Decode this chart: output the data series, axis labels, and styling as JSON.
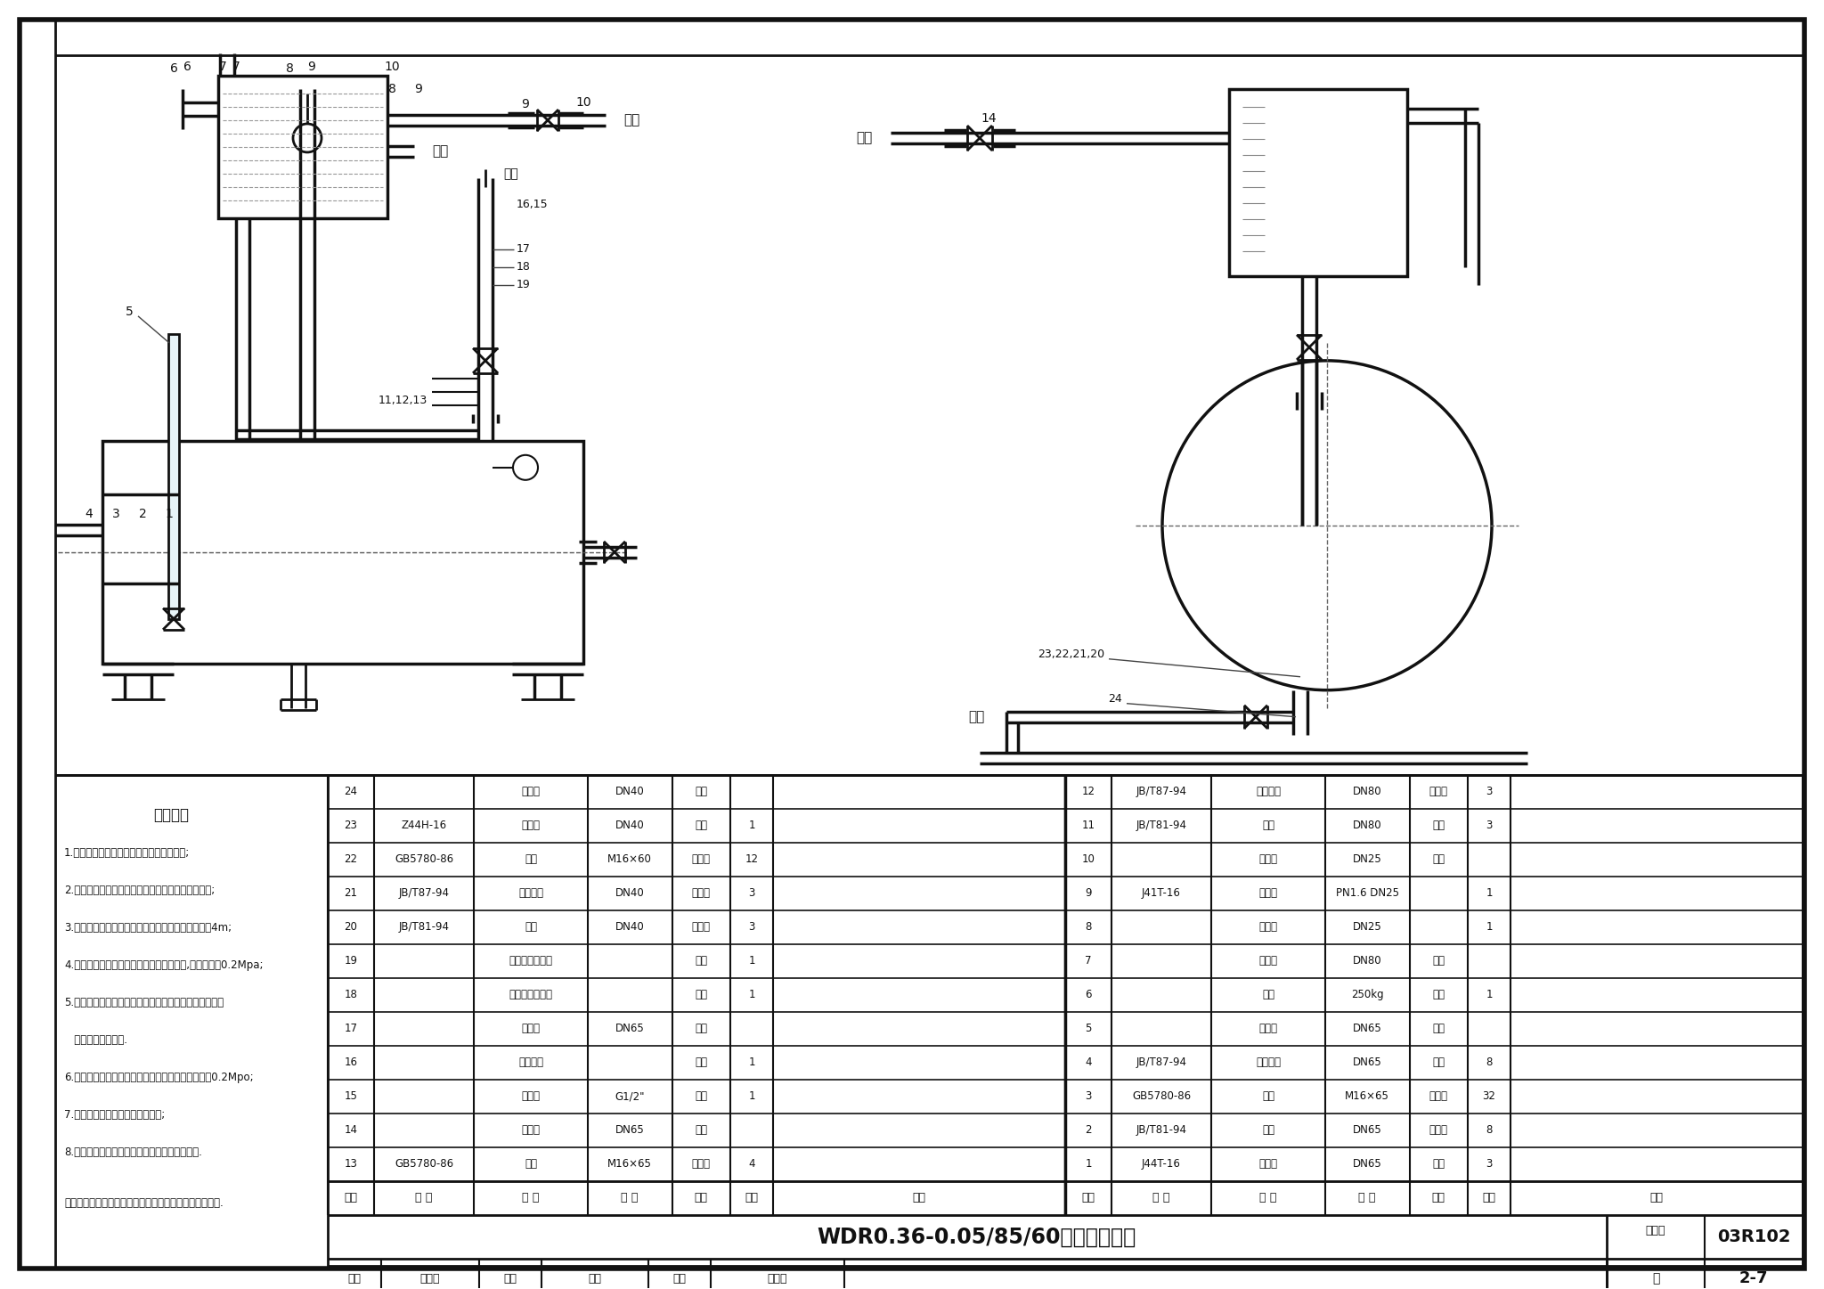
{
  "title": "WDR0.36-0.05/85/60管道仪表阀门",
  "atlas_no": "03R102",
  "page": "2-7",
  "bg_color": "#ffffff",
  "tech_req_title": "技术要求",
  "tech_req": [
    "1.出水口可根据锅炉房的具体情况调整方向;",
    "2.回水口可根据锅炉房的具体情况及调整方向和高度;",
    "3.锅炉上部水箱液面与锅炉本体顶部标高差不得大于4m;",
    "4.安装完毕后，应与锅炉一起进行水压试验,试验压力为0.2Mpa;",
    "5.图中一次阀门以里的法兰、管件及一次阀门以外的仪表",
    "   由厂家提供给用户.",
    "6.使用单位每两年应进行一次水压试验，试验压力为0.2Mpo;",
    "7.水压试验前，应进行内外壁检查;",
    "8.本图材料表内未列出的项目由项目自用户自理."
  ],
  "note": "注：本图根据北京天融环保设备中心产品的技术资料编制.",
  "table_left": [
    [
      "13",
      "GB5780-86",
      "螺栓",
      "M16×65",
      "标准件",
      "4",
      ""
    ],
    [
      "14",
      "",
      "回水管",
      "DN65",
      "组件",
      "",
      ""
    ],
    [
      "15",
      "",
      "压力表",
      "G1/2\"",
      "组件",
      "1",
      ""
    ],
    [
      "16",
      "",
      "三通旋塞",
      "",
      "组件",
      "1",
      ""
    ],
    [
      "17",
      "",
      "出水管",
      "DN65",
      "组件",
      "",
      ""
    ],
    [
      "18",
      "",
      "水位传感器丝座",
      "",
      "组件",
      "1",
      ""
    ],
    [
      "19",
      "",
      "温度传感器丝座",
      "",
      "组件",
      "1",
      ""
    ],
    [
      "20",
      "JB/T81-94",
      "法兰",
      "DN40",
      "标准件",
      "3",
      ""
    ],
    [
      "21",
      "JB/T87-94",
      "法兰衬垫",
      "DN40",
      "标准件",
      "3",
      ""
    ],
    [
      "22",
      "GB5780-86",
      "螺栓",
      "M16×60",
      "标准件",
      "12",
      ""
    ],
    [
      "23",
      "Z44H-16",
      "排污阀",
      "DN40",
      "组件",
      "1",
      ""
    ],
    [
      "24",
      "",
      "排污管",
      "DN40",
      "组件",
      "",
      ""
    ]
  ],
  "table_right": [
    [
      "1",
      "J44T-16",
      "截止阀",
      "DN65",
      "组件",
      "3",
      ""
    ],
    [
      "2",
      "JB/T81-94",
      "法兰",
      "DN65",
      "标准件",
      "8",
      ""
    ],
    [
      "3",
      "GB5780-86",
      "螺栓",
      "M16×65",
      "标准件",
      "32",
      ""
    ],
    [
      "4",
      "JB/T87-94",
      "法兰衬垫",
      "DN65",
      "组件",
      "8",
      ""
    ],
    [
      "5",
      "",
      "进水管",
      "DN65",
      "组件",
      "",
      ""
    ],
    [
      "6",
      "",
      "水箱",
      "250kg",
      "组件",
      "1",
      ""
    ],
    [
      "7",
      "",
      "大气管",
      "DN80",
      "组件",
      "",
      ""
    ],
    [
      "8",
      "",
      "球球阀",
      "DN25",
      "",
      "1",
      ""
    ],
    [
      "9",
      "J41T-16",
      "截止阀",
      "PN1.6 DN25",
      "",
      "1",
      ""
    ],
    [
      "10",
      "",
      "补水管",
      "DN25",
      "组件",
      "",
      ""
    ],
    [
      "11",
      "JB/T81-94",
      "法兰",
      "DN80",
      "组件",
      "3",
      ""
    ],
    [
      "12",
      "JB/T87-94",
      "法兰衬垫",
      "DN80",
      "标准件",
      "3",
      ""
    ]
  ],
  "table_headers": [
    "序号",
    "图 号",
    "名 称",
    "规 格",
    "材料",
    "数量",
    "备注"
  ]
}
